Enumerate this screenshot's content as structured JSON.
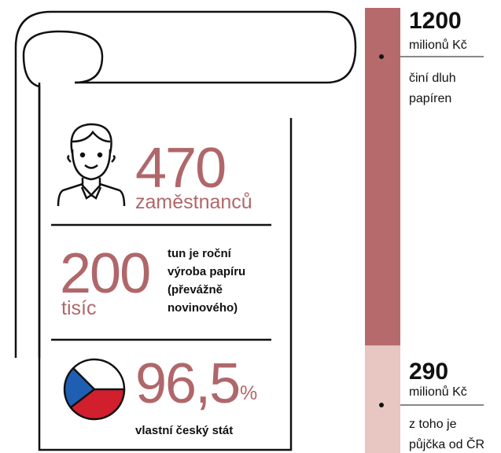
{
  "stats": [
    {
      "value": "470",
      "label": "zaměstnanců"
    },
    {
      "value": "200",
      "unit": "tisíc",
      "label": [
        "tun je roční",
        "výroba papíru",
        "(převážně",
        "novinového)"
      ]
    },
    {
      "value": "96,5",
      "unit": "%",
      "label": "vlastní český stát"
    }
  ],
  "debt": {
    "total": {
      "value": 1200,
      "unit": "milionů Kč",
      "label": [
        "činí dluh",
        "papíren"
      ]
    },
    "part": {
      "value": 290,
      "unit": "milionů Kč",
      "label": [
        "z toho je",
        "půjčka od ČR"
      ]
    }
  }
}
